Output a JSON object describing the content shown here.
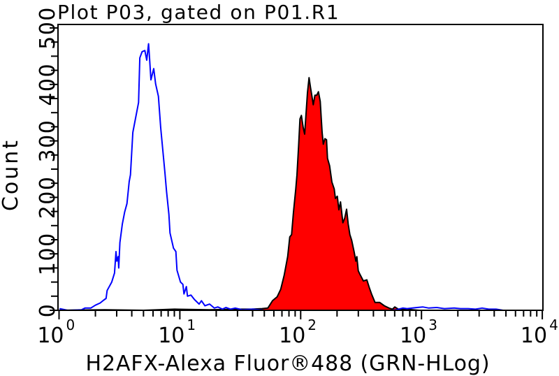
{
  "chart_data": {
    "type": "area",
    "title": "Plot P03, gated on P01.R1",
    "xlabel": "H2AFX-Alexa Fluor®488 (GRN-HLog)",
    "ylabel": "Count",
    "xscale": "log",
    "xlim": [
      1,
      10000
    ],
    "ylim": [
      0,
      500
    ],
    "grid": false,
    "legend": null,
    "xticks": [
      {
        "value": 1,
        "base": "10",
        "exp": "0"
      },
      {
        "value": 10,
        "base": "10",
        "exp": "1"
      },
      {
        "value": 100,
        "base": "10",
        "exp": "2"
      },
      {
        "value": 1000,
        "base": "10",
        "exp": "3"
      },
      {
        "value": 10000,
        "base": "10",
        "exp": "4"
      }
    ],
    "yticks": [
      {
        "value": 0,
        "label": "0"
      },
      {
        "value": 100,
        "label": "100"
      },
      {
        "value": 200,
        "label": "200"
      },
      {
        "value": 300,
        "label": "300"
      },
      {
        "value": 400,
        "label": "400"
      },
      {
        "value": 500,
        "label": "500"
      }
    ],
    "series": [
      {
        "name": "red-filled-histogram",
        "fill": "#FF0000",
        "stroke": "#000000",
        "filled": true,
        "points": [
          [
            1,
            0
          ],
          [
            2.39,
            1
          ],
          [
            5,
            0
          ],
          [
            9.06,
            2
          ],
          [
            17.64,
            1
          ],
          [
            30.04,
            2
          ],
          [
            39.2,
            2
          ],
          [
            47.9,
            3
          ],
          [
            53.5,
            4
          ],
          [
            58.5,
            17
          ],
          [
            63.9,
            24
          ],
          [
            68.3,
            37
          ],
          [
            73.0,
            62
          ],
          [
            78.1,
            95
          ],
          [
            81.2,
            130
          ],
          [
            84.1,
            134
          ],
          [
            87.2,
            174
          ],
          [
            91.1,
            215
          ],
          [
            93.2,
            240
          ],
          [
            96.1,
            290
          ],
          [
            98.7,
            339
          ],
          [
            101.3,
            345
          ],
          [
            105.1,
            323
          ],
          [
            107.9,
            312
          ],
          [
            110.4,
            343
          ],
          [
            113.8,
            385
          ],
          [
            117.3,
            412
          ],
          [
            120.5,
            395
          ],
          [
            124.4,
            377
          ],
          [
            127.1,
            364
          ],
          [
            131.2,
            381
          ],
          [
            135.8,
            381
          ],
          [
            140.3,
            387
          ],
          [
            145.2,
            370
          ],
          [
            148.5,
            335
          ],
          [
            150.5,
            315
          ],
          [
            153.9,
            294
          ],
          [
            158.7,
            304
          ],
          [
            163.7,
            302
          ],
          [
            166.8,
            269
          ],
          [
            173.6,
            256
          ],
          [
            181.4,
            227
          ],
          [
            189.5,
            215
          ],
          [
            193.8,
            198
          ],
          [
            201.0,
            202
          ],
          [
            207.2,
            178
          ],
          [
            213.7,
            192
          ],
          [
            223.6,
            155
          ],
          [
            231.5,
            163
          ],
          [
            239.9,
            179
          ],
          [
            247.4,
            153
          ],
          [
            255.4,
            134
          ],
          [
            264.4,
            124
          ],
          [
            276.6,
            104
          ],
          [
            286.4,
            87
          ],
          [
            291.7,
            95
          ],
          [
            299.6,
            70
          ],
          [
            309.0,
            64
          ],
          [
            330.2,
            52
          ],
          [
            352.9,
            54
          ],
          [
            368.8,
            41
          ],
          [
            385.9,
            29
          ],
          [
            412.5,
            14
          ],
          [
            450.4,
            14
          ],
          [
            492.4,
            8
          ],
          [
            538.3,
            4
          ],
          [
            575.4,
            2
          ],
          [
            601.3,
            6
          ],
          [
            642.7,
            2
          ],
          [
            734,
            2
          ],
          [
            958,
            0
          ],
          [
            10000,
            0
          ]
        ]
      },
      {
        "name": "blue-outline-histogram",
        "fill": "none",
        "stroke": "#0000FF",
        "filled": false,
        "points": [
          [
            1.01,
            3
          ],
          [
            1.18,
            0
          ],
          [
            1.54,
            1
          ],
          [
            1.64,
            4
          ],
          [
            1.83,
            4
          ],
          [
            2.0,
            9
          ],
          [
            2.19,
            13
          ],
          [
            2.34,
            18
          ],
          [
            2.45,
            21
          ],
          [
            2.5,
            35
          ],
          [
            2.73,
            50
          ],
          [
            2.88,
            66
          ],
          [
            2.96,
            104
          ],
          [
            3.01,
            87
          ],
          [
            3.09,
            95
          ],
          [
            3.12,
            75
          ],
          [
            3.19,
            120
          ],
          [
            3.34,
            153
          ],
          [
            3.49,
            174
          ],
          [
            3.65,
            189
          ],
          [
            3.81,
            228
          ],
          [
            3.9,
            240
          ],
          [
            4.08,
            315
          ],
          [
            4.55,
            368
          ],
          [
            4.66,
            447
          ],
          [
            4.87,
            458
          ],
          [
            5.13,
            460
          ],
          [
            5.32,
            443
          ],
          [
            5.51,
            472
          ],
          [
            5.61,
            447
          ],
          [
            5.76,
            408
          ],
          [
            6.08,
            428
          ],
          [
            6.3,
            401
          ],
          [
            6.64,
            379
          ],
          [
            6.94,
            323
          ],
          [
            7.52,
            244
          ],
          [
            7.75,
            211
          ],
          [
            8.11,
            170
          ],
          [
            8.29,
            137
          ],
          [
            8.86,
            110
          ],
          [
            9.27,
            104
          ],
          [
            9.47,
            71
          ],
          [
            10.12,
            50
          ],
          [
            10.59,
            46
          ],
          [
            10.82,
            29
          ],
          [
            11.32,
            42
          ],
          [
            11.56,
            25
          ],
          [
            12.36,
            27
          ],
          [
            13.21,
            19
          ],
          [
            14.44,
            11
          ],
          [
            15.09,
            17
          ],
          [
            16.13,
            8
          ],
          [
            17.64,
            11
          ],
          [
            19.28,
            4
          ],
          [
            20.61,
            6
          ],
          [
            22.5,
            2
          ],
          [
            24.05,
            5
          ],
          [
            26.3,
            2
          ],
          [
            28.75,
            4
          ],
          [
            32.85,
            1
          ],
          [
            40,
            2
          ],
          [
            50,
            0
          ],
          [
            560,
            0
          ],
          [
            620,
            1
          ],
          [
            700,
            4
          ],
          [
            760,
            3
          ],
          [
            839,
            4
          ],
          [
            920,
            5
          ],
          [
            1024,
            6
          ],
          [
            1150,
            4
          ],
          [
            1337,
            5
          ],
          [
            1550,
            3
          ],
          [
            1865,
            4
          ],
          [
            2100,
            3
          ],
          [
            2435,
            3
          ],
          [
            2800,
            2
          ],
          [
            3177,
            4
          ],
          [
            3600,
            2
          ],
          [
            4146,
            2
          ],
          [
            4739,
            0
          ],
          [
            10000,
            0
          ]
        ]
      }
    ]
  }
}
